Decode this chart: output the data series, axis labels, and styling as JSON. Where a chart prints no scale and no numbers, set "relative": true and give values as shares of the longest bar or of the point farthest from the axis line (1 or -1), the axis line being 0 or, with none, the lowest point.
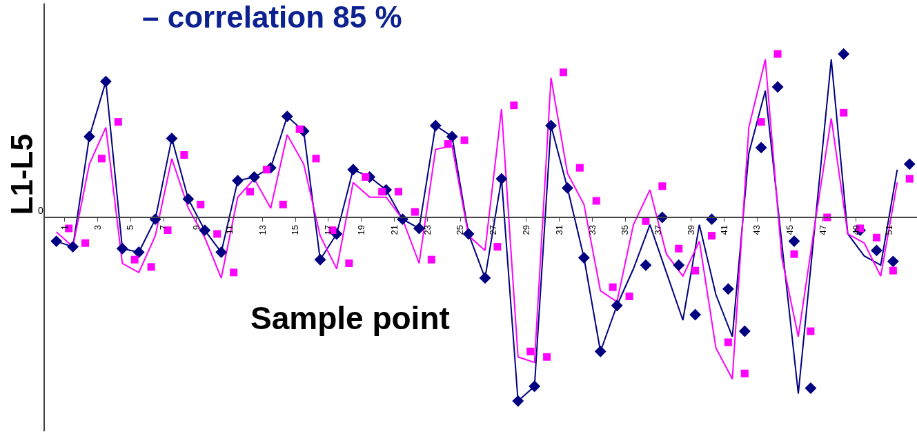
{
  "chart_data": {
    "type": "line",
    "title": "– correlation 85 %",
    "xlabel": "Sample point",
    "ylabel": "L1-L5",
    "relative": true,
    "x": [
      0.5,
      1.5,
      2.5,
      3.5,
      4.5,
      5.5,
      6.5,
      7.5,
      8.5,
      9.5,
      10.5,
      11.5,
      12.5,
      13.5,
      14.5,
      15.5,
      16.5,
      17.5,
      18.5,
      19.5,
      20.5,
      21.5,
      22.5,
      23.5,
      24.5,
      25.5,
      26.5,
      27.5,
      28.5,
      29.5,
      30.5,
      31.5,
      32.5,
      33.5,
      34.5,
      35.5,
      36.5,
      37.5,
      38.5,
      39.5,
      40.5,
      41.5,
      42.5,
      43.5,
      44.5,
      45.5,
      46.5,
      47.5,
      48.5,
      49.5,
      50.5,
      51.5
    ],
    "xlim": [
      -0.2,
      52.7
    ],
    "xticks": [
      1,
      3,
      5,
      7,
      9,
      11,
      13,
      15,
      17,
      19,
      21,
      23,
      25,
      27,
      29,
      31,
      33,
      35,
      37,
      39,
      41,
      43,
      45,
      47,
      49,
      51
    ],
    "series": [
      {
        "marker": "none",
        "color": "#000080",
        "values": [
          -0.13,
          -0.16,
          0.44,
          0.74,
          -0.17,
          -0.19,
          -0.01,
          0.43,
          0.1,
          -0.07,
          -0.19,
          0.2,
          0.22,
          0.27,
          0.55,
          0.47,
          -0.23,
          -0.09,
          0.26,
          0.22,
          0.15,
          -0.01,
          -0.06,
          0.5,
          0.44,
          -0.09,
          -0.33,
          0.21,
          -1.0,
          -0.92,
          0.5,
          0.16,
          -0.22,
          -0.73,
          -0.48,
          -0.28,
          -0.04,
          -0.3,
          -0.56,
          -0.04,
          -0.42,
          -0.65,
          0.35,
          0.69,
          -0.14,
          -0.96,
          -0.05,
          0.86,
          -0.09,
          -0.21,
          -0.26,
          0.26
        ]
      },
      {
        "marker": "none",
        "color": "#ff00ff",
        "values": [
          -0.08,
          -0.16,
          0.29,
          0.49,
          -0.25,
          -0.3,
          -0.1,
          0.32,
          0.05,
          -0.11,
          -0.33,
          0.11,
          0.21,
          0.05,
          0.45,
          0.29,
          -0.1,
          -0.28,
          0.19,
          0.11,
          0.11,
          -0.01,
          -0.25,
          0.37,
          0.39,
          -0.1,
          -0.18,
          0.59,
          -0.76,
          -0.79,
          0.76,
          0.24,
          0.07,
          -0.4,
          -0.46,
          -0.04,
          0.15,
          -0.2,
          -0.32,
          -0.13,
          -0.71,
          -0.88,
          0.49,
          0.86,
          -0.22,
          -0.65,
          -0.04,
          0.54,
          -0.09,
          -0.14,
          -0.32,
          0.19
        ]
      },
      {
        "type": "scatter",
        "marker": "diamond",
        "color": "#000080",
        "x": [
          0.5,
          1.5,
          2.5,
          3.5,
          4.5,
          5.5,
          6.5,
          7.5,
          8.5,
          9.5,
          10.5,
          11.5,
          12.5,
          13.5,
          14.5,
          15.5,
          16.5,
          17.5,
          18.5,
          19.5,
          20.5,
          21.5,
          22.5,
          23.5,
          24.5,
          25.5,
          26.5,
          27.5,
          28.5,
          29.5,
          30.5,
          31.5,
          32.5,
          33.5,
          34.5,
          36.25,
          37.25,
          38.25,
          39.25,
          40.25,
          41.25,
          42.25,
          43.25,
          44.25,
          45.25,
          46.25,
          47.25,
          48.25,
          49.25,
          50.25,
          51.25,
          52.25
        ],
        "values": [
          -0.13,
          -0.16,
          0.44,
          0.74,
          -0.17,
          -0.19,
          -0.01,
          0.43,
          0.1,
          -0.07,
          -0.19,
          0.2,
          0.22,
          0.27,
          0.55,
          0.47,
          -0.23,
          -0.09,
          0.26,
          0.22,
          0.15,
          -0.01,
          -0.06,
          0.5,
          0.44,
          -0.09,
          -0.33,
          0.21,
          -1.0,
          -0.92,
          0.5,
          0.16,
          -0.22,
          -0.73,
          -0.48,
          -0.26,
          0.0,
          -0.26,
          -0.53,
          -0.01,
          -0.39,
          -0.62,
          0.38,
          0.71,
          -0.13,
          -0.93,
          null,
          0.89,
          -0.07,
          -0.18,
          -0.24,
          0.29
        ]
      },
      {
        "type": "scatter",
        "marker": "square",
        "color": "#ff00ff",
        "x": [
          1.25,
          2.25,
          3.25,
          4.25,
          5.25,
          6.25,
          7.25,
          8.25,
          9.25,
          10.25,
          11.25,
          12.25,
          13.25,
          14.25,
          15.25,
          16.25,
          17.25,
          18.25,
          19.25,
          20.25,
          21.25,
          22.25,
          23.25,
          24.25,
          25.25,
          26.25,
          27.25,
          28.25,
          29.25,
          30.25,
          31.25,
          32.25,
          33.25,
          34.25,
          35.25,
          36.25,
          37.25,
          38.25,
          39.25,
          40.25,
          41.25,
          42.25,
          43.25,
          44.25,
          45.25,
          46.25,
          47.25,
          48.25,
          49.25,
          50.25,
          51.25,
          52.25
        ],
        "values": [
          -0.06,
          -0.14,
          0.32,
          0.52,
          -0.23,
          -0.27,
          -0.07,
          0.34,
          0.07,
          -0.09,
          -0.3,
          0.14,
          0.26,
          0.07,
          0.48,
          0.32,
          -0.07,
          -0.25,
          0.22,
          0.14,
          0.14,
          0.03,
          -0.23,
          0.4,
          0.42,
          null,
          -0.16,
          0.61,
          -0.73,
          -0.76,
          0.79,
          0.27,
          0.09,
          -0.38,
          -0.43,
          -0.02,
          0.17,
          -0.17,
          -0.29,
          -0.1,
          -0.68,
          -0.85,
          0.52,
          0.89,
          -0.2,
          -0.62,
          0.0,
          0.57,
          -0.06,
          -0.11,
          -0.29,
          0.21
        ]
      }
    ],
    "annotations": [
      "0"
    ]
  }
}
